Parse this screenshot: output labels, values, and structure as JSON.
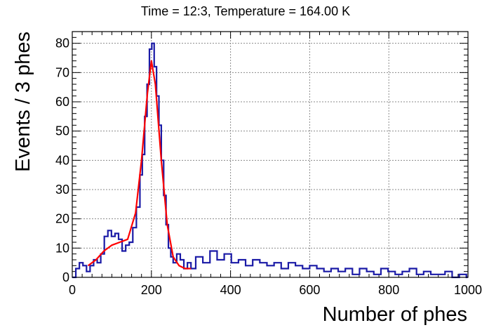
{
  "chart_data": {
    "type": "histogram",
    "title": "Time = 12:3, Temperature = 164.00 K",
    "xlabel": "Number of phes",
    "ylabel": "Events / 3 phes",
    "xlim": [
      0,
      1000
    ],
    "ylim": [
      0,
      84
    ],
    "grid": true,
    "legend": "none",
    "x_ticks": [
      0,
      200,
      400,
      600,
      800,
      1000
    ],
    "x_tick_labels": [
      "0",
      "200",
      "400",
      "600",
      "800",
      "1000"
    ],
    "y_ticks": [
      0,
      10,
      20,
      30,
      40,
      50,
      60,
      70,
      80
    ],
    "y_tick_labels": [
      "0",
      "10",
      "20",
      "30",
      "40",
      "50",
      "60",
      "70",
      "80"
    ],
    "bin_width": 3,
    "series": [
      {
        "kind": "histogram",
        "color": "#1a1aa6",
        "points": [
          [
            0,
            0
          ],
          [
            9,
            3
          ],
          [
            18,
            5
          ],
          [
            27,
            4
          ],
          [
            36,
            2
          ],
          [
            45,
            4
          ],
          [
            54,
            6
          ],
          [
            63,
            5
          ],
          [
            72,
            8
          ],
          [
            81,
            14
          ],
          [
            90,
            16
          ],
          [
            99,
            14
          ],
          [
            108,
            15
          ],
          [
            117,
            13
          ],
          [
            126,
            9
          ],
          [
            135,
            11
          ],
          [
            144,
            12
          ],
          [
            153,
            17
          ],
          [
            162,
            24
          ],
          [
            171,
            35
          ],
          [
            177,
            42
          ],
          [
            183,
            55
          ],
          [
            189,
            66
          ],
          [
            195,
            78
          ],
          [
            201,
            80
          ],
          [
            207,
            72
          ],
          [
            213,
            62
          ],
          [
            219,
            52
          ],
          [
            225,
            40
          ],
          [
            231,
            28
          ],
          [
            237,
            18
          ],
          [
            243,
            10
          ],
          [
            249,
            7
          ],
          [
            255,
            5
          ],
          [
            264,
            8
          ],
          [
            273,
            6
          ],
          [
            282,
            3
          ],
          [
            291,
            5
          ],
          [
            300,
            3
          ],
          [
            312,
            7
          ],
          [
            330,
            5
          ],
          [
            348,
            9
          ],
          [
            366,
            6
          ],
          [
            384,
            8
          ],
          [
            402,
            5
          ],
          [
            420,
            6
          ],
          [
            438,
            4
          ],
          [
            456,
            6
          ],
          [
            474,
            5
          ],
          [
            492,
            4
          ],
          [
            510,
            5
          ],
          [
            528,
            3
          ],
          [
            546,
            5
          ],
          [
            564,
            4
          ],
          [
            582,
            3
          ],
          [
            600,
            4
          ],
          [
            618,
            3
          ],
          [
            636,
            2
          ],
          [
            654,
            3
          ],
          [
            672,
            2
          ],
          [
            690,
            3
          ],
          [
            708,
            1
          ],
          [
            726,
            3
          ],
          [
            744,
            2
          ],
          [
            762,
            1
          ],
          [
            780,
            3
          ],
          [
            798,
            2
          ],
          [
            816,
            1
          ],
          [
            834,
            2
          ],
          [
            852,
            3
          ],
          [
            870,
            1
          ],
          [
            888,
            2
          ],
          [
            906,
            1
          ],
          [
            924,
            1
          ],
          [
            942,
            2
          ],
          [
            960,
            0
          ],
          [
            978,
            1
          ],
          [
            996,
            0
          ]
        ]
      },
      {
        "kind": "fit",
        "color": "#ff0000",
        "points": [
          [
            40,
            4
          ],
          [
            60,
            6
          ],
          [
            80,
            9
          ],
          [
            100,
            11
          ],
          [
            120,
            12
          ],
          [
            140,
            13
          ],
          [
            160,
            22
          ],
          [
            175,
            40
          ],
          [
            190,
            63
          ],
          [
            200,
            74
          ],
          [
            210,
            66
          ],
          [
            225,
            40
          ],
          [
            240,
            18
          ],
          [
            255,
            7
          ],
          [
            270,
            4
          ],
          [
            285,
            3
          ],
          [
            300,
            3
          ]
        ]
      }
    ]
  }
}
